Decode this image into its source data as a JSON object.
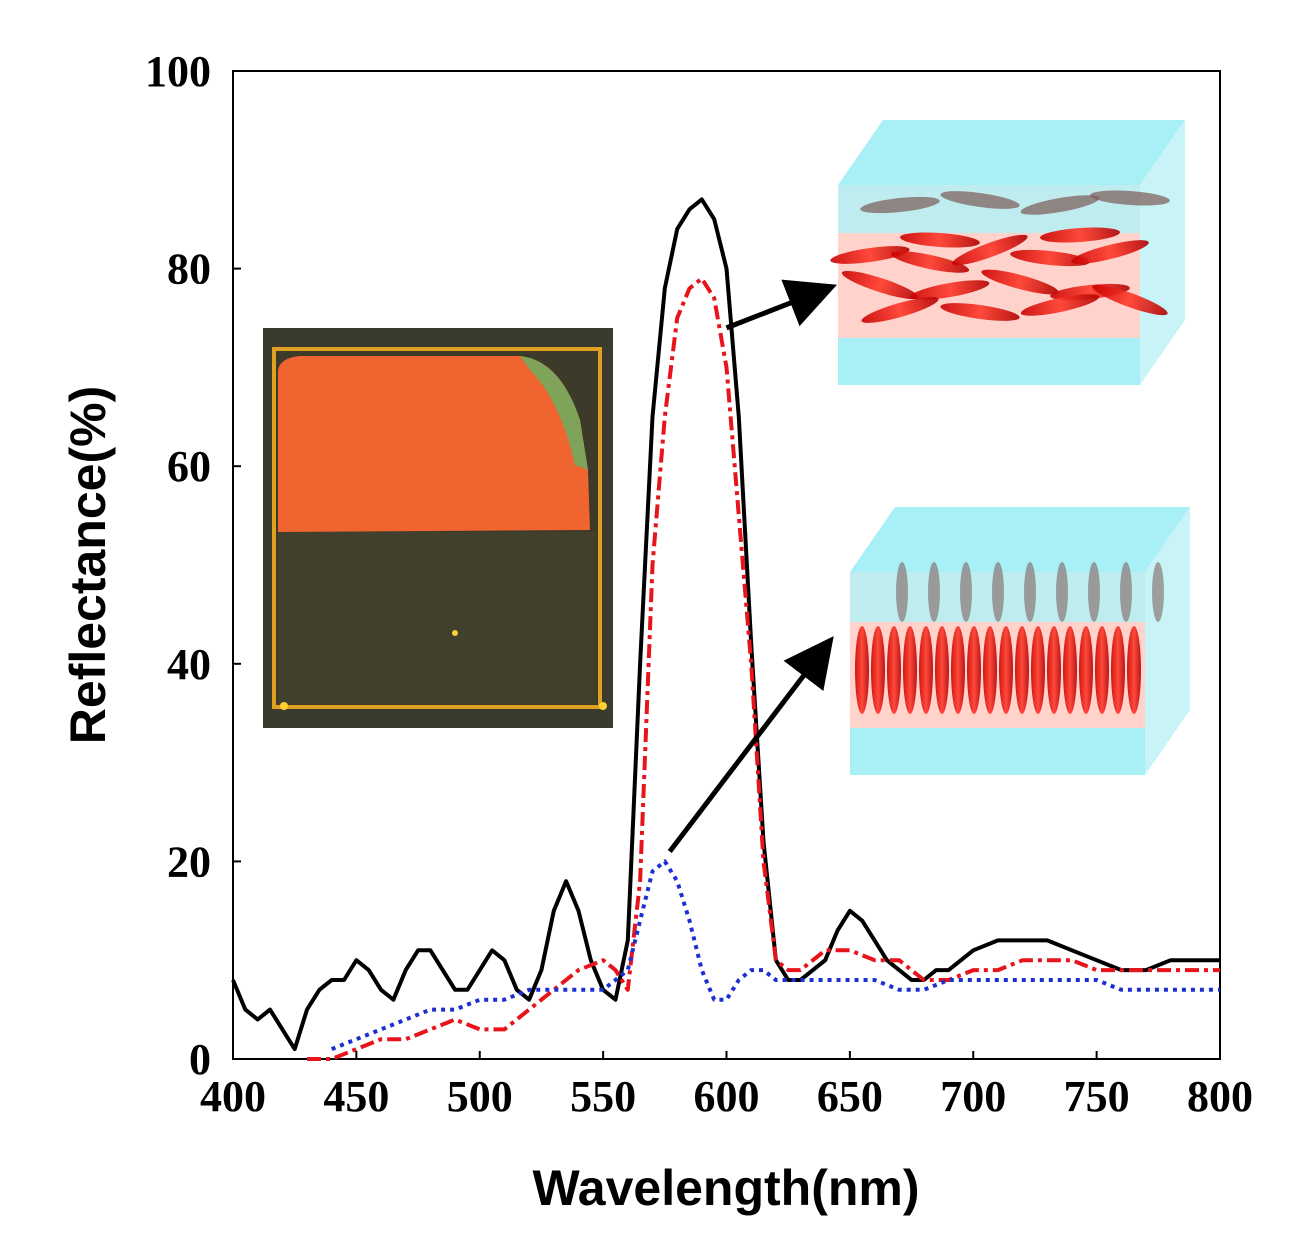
{
  "chart_data": {
    "type": "line",
    "title": "",
    "xlabel": "Wavelength(nm)",
    "ylabel": "Reflectance(%)",
    "xlim": [
      400,
      800
    ],
    "ylim": [
      0,
      100
    ],
    "xticks": [
      400,
      450,
      500,
      550,
      600,
      650,
      700,
      750,
      800
    ],
    "yticks": [
      0,
      20,
      40,
      60,
      80,
      100
    ],
    "grid": false,
    "legend": "none",
    "series": [
      {
        "name": "black-solid",
        "color": "#000000",
        "style": "solid",
        "x": [
          400,
          405,
          410,
          415,
          420,
          425,
          430,
          435,
          440,
          445,
          450,
          455,
          460,
          465,
          470,
          475,
          480,
          485,
          490,
          495,
          500,
          505,
          510,
          515,
          520,
          525,
          530,
          535,
          540,
          545,
          550,
          555,
          560,
          565,
          570,
          575,
          580,
          585,
          590,
          595,
          600,
          605,
          610,
          615,
          620,
          625,
          630,
          635,
          640,
          645,
          650,
          655,
          660,
          665,
          670,
          675,
          680,
          685,
          690,
          700,
          710,
          720,
          730,
          740,
          750,
          760,
          770,
          780,
          790,
          800
        ],
        "y": [
          8,
          5,
          4,
          5,
          3,
          1,
          5,
          7,
          8,
          8,
          10,
          9,
          7,
          6,
          9,
          11,
          11,
          9,
          7,
          7,
          9,
          11,
          10,
          7,
          6,
          9,
          15,
          18,
          15,
          10,
          7,
          6,
          12,
          40,
          65,
          78,
          84,
          86,
          87,
          85,
          80,
          65,
          42,
          22,
          10,
          8,
          8,
          9,
          10,
          13,
          15,
          14,
          12,
          10,
          9,
          8,
          8,
          9,
          9,
          11,
          12,
          12,
          12,
          11,
          10,
          9,
          9,
          10,
          10,
          10
        ]
      },
      {
        "name": "red-dashdot",
        "color": "#e8141c",
        "style": "dashdot",
        "x": [
          430,
          440,
          450,
          460,
          470,
          480,
          490,
          500,
          510,
          520,
          530,
          540,
          550,
          555,
          560,
          565,
          570,
          575,
          580,
          585,
          590,
          595,
          600,
          605,
          610,
          615,
          620,
          625,
          630,
          640,
          650,
          660,
          670,
          680,
          690,
          700,
          710,
          720,
          730,
          740,
          750,
          760,
          770,
          780,
          790,
          800
        ],
        "y": [
          0,
          0,
          1,
          2,
          2,
          3,
          4,
          3,
          3,
          5,
          7,
          9,
          10,
          9,
          7,
          18,
          50,
          65,
          75,
          78,
          79,
          77,
          70,
          55,
          40,
          20,
          10,
          9,
          9,
          11,
          11,
          10,
          10,
          8,
          8,
          9,
          9,
          10,
          10,
          10,
          9,
          9,
          9,
          9,
          9,
          9
        ]
      },
      {
        "name": "blue-dotted",
        "color": "#1c2fd0",
        "style": "dotted",
        "x": [
          440,
          450,
          460,
          470,
          480,
          490,
          500,
          510,
          520,
          530,
          540,
          550,
          555,
          560,
          565,
          570,
          575,
          580,
          585,
          590,
          595,
          600,
          605,
          610,
          615,
          620,
          630,
          640,
          650,
          660,
          670,
          680,
          690,
          700,
          710,
          720,
          730,
          740,
          750,
          760,
          770,
          780,
          790,
          800
        ],
        "y": [
          1,
          2,
          3,
          4,
          5,
          5,
          6,
          6,
          7,
          7,
          7,
          7,
          8,
          9,
          14,
          19,
          20,
          18,
          14,
          9,
          6,
          6,
          8,
          9,
          9,
          8,
          8,
          8,
          8,
          8,
          7,
          7,
          8,
          8,
          8,
          8,
          8,
          8,
          8,
          7,
          7,
          7,
          7,
          7
        ]
      }
    ],
    "annotations": [
      {
        "type": "arrow",
        "from": [
          600,
          74
        ],
        "to": [
          641,
          78
        ],
        "label": ""
      },
      {
        "type": "arrow",
        "from": [
          577,
          21
        ],
        "to": [
          641,
          42
        ],
        "label": ""
      }
    ]
  }
}
